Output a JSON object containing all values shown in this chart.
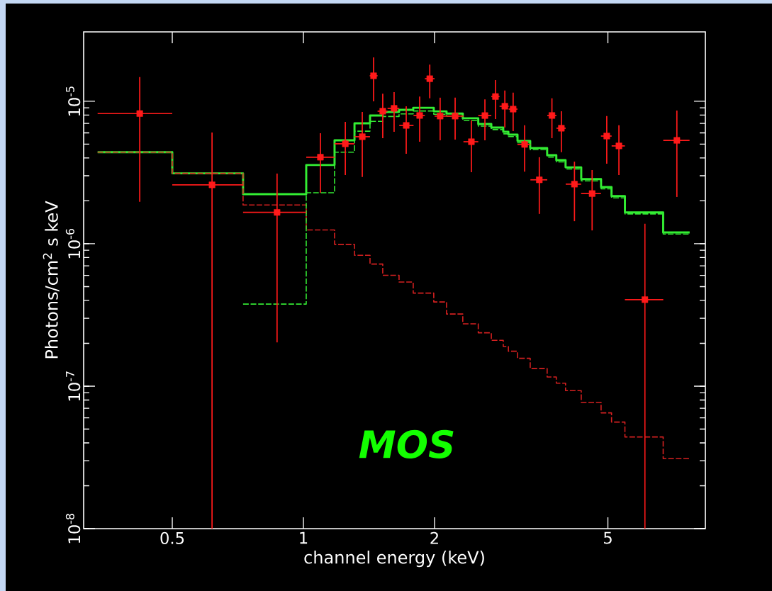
{
  "chart_data": {
    "type": "step",
    "xlabel": "channel energy (keV)",
    "ylabel": "Photons/cm$^{2}$ s keV",
    "log": "xy",
    "xlim": [
      0.313,
      8.37
    ],
    "ylim": [
      1e-08,
      3.07e-05
    ],
    "xticks": [
      0.5,
      1,
      2,
      5
    ],
    "yticks": [
      {
        "value": 1e-08,
        "label": "10$^{-8}$"
      },
      {
        "value": 1e-07,
        "label": "10$^{-7}$"
      },
      {
        "value": 1e-06,
        "label": "10$^{-6}$"
      },
      {
        "value": 1e-05,
        "label": "10$^{-5}$"
      }
    ],
    "annotations": [
      "MOS"
    ],
    "series": [
      {
        "color": "#33ee33",
        "line_style": "solid",
        "x": [
          0.337,
          0.5,
          0.727,
          1.015,
          1.179,
          1.31,
          1.422,
          1.521,
          1.658,
          1.787,
          1.992,
          2.131,
          2.322,
          2.52,
          2.7,
          2.876,
          2.955,
          3.101,
          3.316,
          3.627,
          3.807,
          3.998,
          4.343,
          4.823,
          5.097,
          5.471,
          6.697,
          7.704
        ],
        "values": [
          4.39e-06,
          3.12e-06,
          2.23e-06,
          3.57e-06,
          5.32e-06,
          7e-06,
          7.95e-06,
          8.42e-06,
          8.7e-06,
          9e-06,
          8.5e-06,
          8.2e-06,
          7.6e-06,
          6.93e-06,
          6.54e-06,
          6.1e-06,
          5.83e-06,
          5.27e-06,
          4.7e-06,
          4.18e-06,
          3.86e-06,
          3.44e-06,
          2.84e-06,
          2.5e-06,
          2.16e-06,
          1.66e-06,
          1.2e-06,
          1.2e-06
        ]
      },
      {
        "color": "#d42020",
        "line_style": "dashed",
        "x": [
          0.337,
          0.5,
          0.727,
          1.015,
          1.179,
          1.31,
          1.422,
          1.521,
          1.658,
          1.787,
          1.992,
          2.131,
          2.322,
          2.52,
          2.7,
          2.876,
          2.955,
          3.101,
          3.316,
          3.627,
          3.807,
          3.998,
          4.343,
          4.823,
          5.097,
          5.471,
          6.697,
          7.704
        ],
        "values": [
          4.39e-06,
          3.12e-06,
          1.87e-06,
          1.25e-06,
          9.9e-07,
          8.3e-07,
          7.2e-07,
          6e-07,
          5.38e-07,
          4.5e-07,
          3.9e-07,
          3.21e-07,
          2.74e-07,
          2.37e-07,
          2.1e-07,
          1.9e-07,
          1.76e-07,
          1.57e-07,
          1.33e-07,
          1.16e-07,
          1.05e-07,
          9.3e-08,
          7.7e-08,
          6.5e-08,
          5.6e-08,
          4.4e-08,
          3.1e-08,
          3.1e-08
        ]
      },
      {
        "color": "#33e833",
        "line_style": "dashed",
        "x": [
          0.727,
          1.015,
          1.179,
          1.31,
          1.422,
          1.521,
          1.658,
          1.787,
          1.992,
          2.131,
          2.322,
          2.52,
          2.7,
          2.876,
          2.955,
          3.101,
          3.316,
          3.627,
          3.807,
          3.998,
          4.343,
          4.823,
          5.097,
          5.471,
          6.697,
          7.704
        ],
        "values": [
          3.77e-07,
          2.28e-06,
          4.39e-06,
          6.17e-06,
          7.23e-06,
          7.82e-06,
          8.16e-06,
          8.55e-06,
          8.11e-06,
          7.88e-06,
          7.33e-06,
          6.69e-06,
          6.33e-06,
          5.91e-06,
          5.65e-06,
          5.11e-06,
          4.57e-06,
          4.06e-06,
          3.75e-06,
          3.35e-06,
          2.76e-06,
          2.43e-06,
          2.1e-06,
          1.62e-06,
          1.17e-06,
          1.17e-06
        ]
      },
      {
        "type": "scatter",
        "color": "#ff1a1a",
        "marker": "square",
        "x": [
          0.421,
          0.617,
          0.87,
          1.094,
          1.248,
          1.365,
          1.449,
          1.521,
          1.615,
          1.722,
          1.849,
          1.95,
          2.06,
          2.23,
          2.43,
          2.61,
          2.76,
          2.9,
          3.03,
          3.22,
          3.48,
          3.72,
          3.91,
          4.19,
          4.6,
          4.97,
          5.3,
          6.08,
          7.2
        ],
        "values": [
          8.2e-06,
          2.59e-06,
          1.66e-06,
          4.05e-06,
          5.03e-06,
          5.64e-06,
          1.51e-05,
          8.52e-06,
          8.92e-06,
          6.77e-06,
          7.95e-06,
          1.44e-05,
          7.87e-06,
          7.87e-06,
          5.2e-06,
          7.94e-06,
          1.08e-05,
          9.23e-06,
          8.81e-06,
          4.98e-06,
          2.81e-06,
          7.95e-06,
          6.47e-06,
          2.62e-06,
          2.25e-06,
          5.7e-06,
          4.86e-06,
          4.05e-07,
          5.32e-06
        ],
        "errors": [
          [
            1.97e-06,
            1.48e-05
          ],
          [
            1e-08,
            6.03e-06
          ],
          [
            2.03e-07,
            3.11e-06
          ],
          [
            2.28e-06,
            5.97e-06
          ],
          [
            3.04e-06,
            7.17e-06
          ],
          [
            2.94e-06,
            8.42e-06
          ],
          [
            1e-05,
            2.03e-05
          ],
          [
            5.51e-06,
            1.13e-05
          ],
          [
            6.11e-06,
            1.16e-05
          ],
          [
            4.28e-06,
            9.23e-06
          ],
          [
            5.2e-06,
            1.08e-05
          ],
          [
            1.05e-05,
            1.81e-05
          ],
          [
            5.32e-06,
            1.06e-05
          ],
          [
            5.38e-06,
            1.06e-05
          ],
          [
            3.18e-06,
            7.34e-06
          ],
          [
            5.32e-06,
            1.03e-05
          ],
          [
            7.51e-06,
            1.41e-05
          ],
          [
            6.55e-06,
            1.19e-05
          ],
          [
            6.18e-06,
            1.15e-05
          ],
          [
            3.21e-06,
            6.78e-06
          ],
          [
            1.62e-06,
            4.05e-06
          ],
          [
            5.51e-06,
            1.05e-05
          ],
          [
            4.39e-06,
            8.5e-06
          ],
          [
            1.44e-06,
            3.77e-06
          ],
          [
            1.24e-06,
            3.29e-06
          ],
          [
            3.65e-06,
            7.87e-06
          ],
          [
            3.04e-06,
            6.78e-06
          ],
          [
            1e-08,
            1.38e-06
          ],
          [
            2.13e-06,
            8.61e-06
          ]
        ],
        "xerrors": [
          [
            0.337,
            0.5
          ],
          [
            0.5,
            0.727
          ],
          [
            0.727,
            1.015
          ],
          [
            1.015,
            1.179
          ],
          [
            1.179,
            1.31
          ],
          [
            1.31,
            1.422
          ],
          [
            1.42,
            1.48
          ],
          [
            1.48,
            1.56
          ],
          [
            1.56,
            1.66
          ],
          [
            1.66,
            1.79
          ],
          [
            1.79,
            1.9
          ],
          [
            1.9,
            2.0
          ],
          [
            2.0,
            2.13
          ],
          [
            2.13,
            2.33
          ],
          [
            2.33,
            2.52
          ],
          [
            2.52,
            2.7
          ],
          [
            2.7,
            2.82
          ],
          [
            2.82,
            2.96
          ],
          [
            2.96,
            3.1
          ],
          [
            3.1,
            3.32
          ],
          [
            3.32,
            3.63
          ],
          [
            3.63,
            3.81
          ],
          [
            3.81,
            4.0
          ],
          [
            4.0,
            4.34
          ],
          [
            4.34,
            4.82
          ],
          [
            4.82,
            5.1
          ],
          [
            5.1,
            5.47
          ],
          [
            5.47,
            6.7
          ],
          [
            6.7,
            7.7
          ]
        ]
      }
    ]
  }
}
